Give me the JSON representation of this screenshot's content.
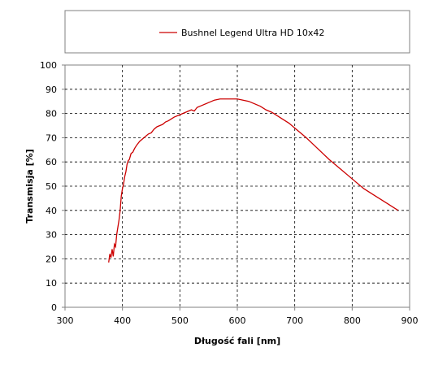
{
  "chart_data": {
    "type": "line",
    "title": "",
    "xlabel": "Długość fali [nm]",
    "ylabel": "Transmisja [%]",
    "xlim": [
      300,
      900
    ],
    "ylim": [
      0,
      100
    ],
    "xticks": [
      "300",
      "400",
      "500",
      "600",
      "700",
      "800",
      "900"
    ],
    "yticks": [
      "0",
      "10",
      "20",
      "30",
      "40",
      "50",
      "60",
      "70",
      "80",
      "90",
      "100"
    ],
    "grid": true,
    "legend_position": "top",
    "series": [
      {
        "name": "Bushnel Legend Ultra HD 10x42",
        "color": "#cc0000",
        "x": [
          376,
          378,
          380,
          382,
          384,
          386,
          388,
          390,
          392,
          394,
          396,
          398,
          400,
          402,
          404,
          406,
          408,
          410,
          412,
          415,
          418,
          421,
          425,
          430,
          435,
          440,
          445,
          450,
          455,
          460,
          465,
          470,
          475,
          480,
          490,
          500,
          510,
          520,
          525,
          530,
          540,
          550,
          560,
          570,
          580,
          590,
          600,
          610,
          620,
          630,
          640,
          650,
          660,
          670,
          680,
          690,
          700,
          720,
          740,
          760,
          780,
          800,
          820,
          840,
          860,
          880
        ],
        "y": [
          18.5,
          22,
          20.5,
          24,
          21,
          26,
          25,
          30,
          33,
          36,
          40,
          46,
          49,
          51,
          54,
          56,
          59,
          60.5,
          61,
          63.5,
          64,
          65.5,
          67,
          68.5,
          69.5,
          70.5,
          71.5,
          72,
          73.5,
          74.5,
          75,
          75.5,
          76.5,
          77,
          78.5,
          79.5,
          80.5,
          81.5,
          81,
          82.5,
          83.5,
          84.5,
          85.5,
          86,
          86,
          86,
          86,
          85.5,
          85,
          84,
          83,
          81.5,
          80.5,
          79,
          77.5,
          76,
          74,
          70,
          65.5,
          61,
          57,
          53,
          49,
          46,
          43,
          40
        ]
      }
    ]
  }
}
